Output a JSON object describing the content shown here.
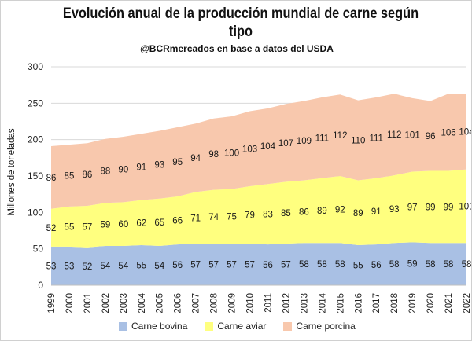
{
  "chart_data": {
    "type": "area",
    "stacked": true,
    "title": "Evolución anual de la producción mundial de carne según tipo",
    "subtitle": "@BCRmercados en base a datos del USDA",
    "ylabel": "Millones de toneladas",
    "ylim": [
      0,
      300
    ],
    "yticks": [
      0,
      50,
      100,
      150,
      200,
      250,
      300
    ],
    "grid": true,
    "legend_position": "bottom",
    "x": [
      "1999",
      "2000",
      "2001",
      "2002",
      "2003",
      "2004",
      "2005",
      "2006",
      "2007",
      "2008",
      "2009",
      "2010",
      "2011",
      "2012",
      "2013",
      "2014",
      "2015",
      "2016",
      "2017",
      "2018",
      "2019",
      "2020",
      "2021",
      "2022"
    ],
    "series": [
      {
        "name": "Carne bovina",
        "color": "#a9c0e4",
        "values": [
          53,
          53,
          52,
          54,
          54,
          55,
          54,
          56,
          57,
          57,
          57,
          57,
          56,
          57,
          58,
          58,
          58,
          55,
          56,
          58,
          59,
          58,
          58,
          58
        ]
      },
      {
        "name": "Carne aviar",
        "color": "#ffff7f",
        "values": [
          52,
          55,
          57,
          59,
          60,
          62,
          65,
          66,
          71,
          74,
          75,
          79,
          83,
          85,
          86,
          89,
          92,
          89,
          91,
          93,
          97,
          99,
          99,
          101
        ]
      },
      {
        "name": "Carne porcina",
        "color": "#f8c8ad",
        "values": [
          86,
          85,
          86,
          88,
          90,
          91,
          93,
          95,
          94,
          98,
          100,
          103,
          104,
          107,
          109,
          111,
          112,
          110,
          111,
          112,
          101,
          96,
          106,
          104
        ]
      }
    ]
  }
}
